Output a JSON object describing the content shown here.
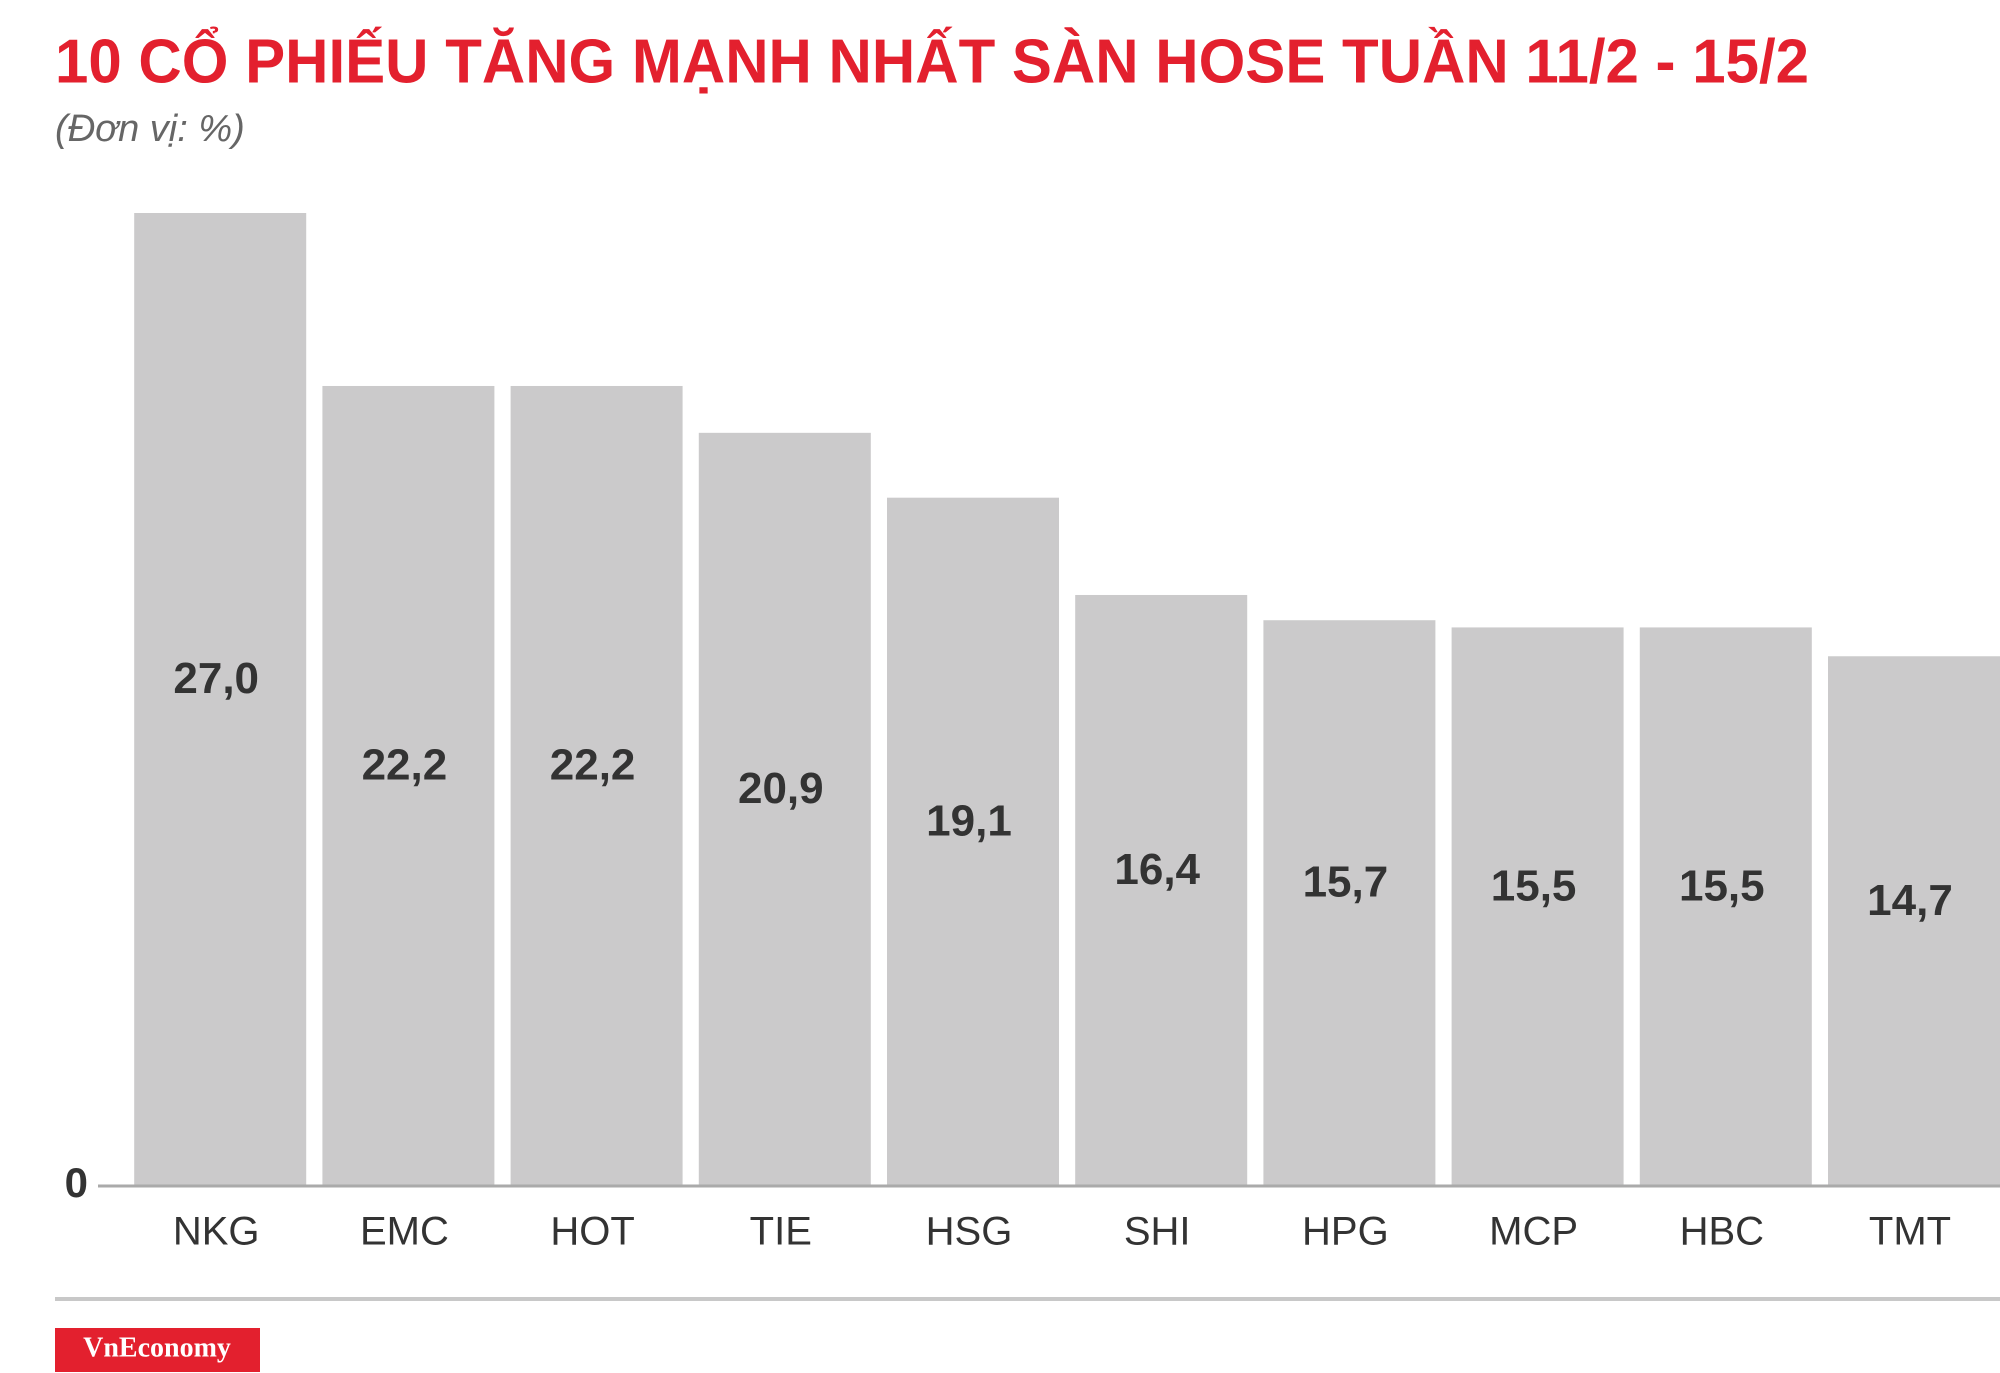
{
  "chart_data": {
    "type": "bar",
    "title": "10 CỔ PHIẾU TĂNG MẠNH NHẤT SÀN HOSE TUẦN 11/2 - 15/2",
    "subtitle": "(Đơn vị: %)",
    "categories": [
      "NKG",
      "EMC",
      "HOT",
      "TIE",
      "HSG",
      "SHI",
      "HPG",
      "MCP",
      "HBC",
      "TMT"
    ],
    "values": [
      27.0,
      22.2,
      22.2,
      20.9,
      19.1,
      16.4,
      15.7,
      15.5,
      15.5,
      14.7
    ],
    "value_labels": [
      "27,0",
      "22,2",
      "22,2",
      "20,9",
      "19,1",
      "16,4",
      "15,7",
      "15,5",
      "15,5",
      "14,7"
    ],
    "color": "#cbcacb",
    "ylim": [
      0,
      27
    ],
    "yticks": [
      0
    ],
    "brand": "VnEconomy"
  }
}
